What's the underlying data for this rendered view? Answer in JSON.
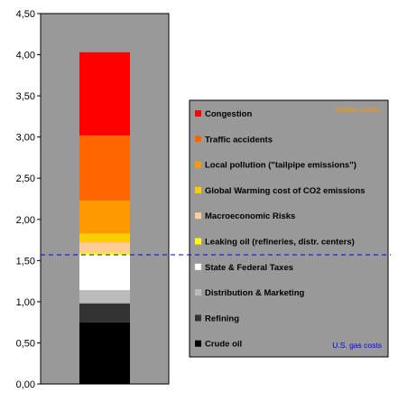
{
  "chart_data": {
    "type": "bar",
    "stacked": true,
    "categories": [
      ""
    ],
    "ylim": [
      0,
      4.5
    ],
    "yticks": [
      "0,00",
      "0,50",
      "1,00",
      "1,50",
      "2,00",
      "2,50",
      "3,00",
      "3,50",
      "4,00",
      "4,50"
    ],
    "plot_background": "#999999",
    "legend_background": "#999999",
    "series": [
      {
        "name": "Crude oil",
        "value": 0.75,
        "color": "#000000"
      },
      {
        "name": "Refining",
        "value": 0.23,
        "color": "#333333"
      },
      {
        "name": "Distribution & Marketing",
        "value": 0.16,
        "color": "#bbbbbb"
      },
      {
        "name": "State & Federal Taxes",
        "value": 0.43,
        "color": "#ffffff"
      },
      {
        "name": "Leaking oil (refineries, distr. centers)",
        "value": 0.03,
        "color": "#ffff00"
      },
      {
        "name": "Macroeconomic Risks",
        "value": 0.12,
        "color": "#ffcc99"
      },
      {
        "name": "Global Warming cost of CO2 emissions",
        "value": 0.11,
        "color": "#ffcc00"
      },
      {
        "name": "Local pollution (\"tailpipe emissions\")",
        "value": 0.4,
        "color": "#ff9900"
      },
      {
        "name": "Traffic accidents",
        "value": 0.79,
        "color": "#ff6600"
      },
      {
        "name": "Congestion",
        "value": 1.01,
        "color": "#ff0000"
      }
    ],
    "reference_line": {
      "value": 1.57,
      "color": "#0000ff",
      "style": "dashed"
    },
    "annotations": {
      "hidden_costs": {
        "text": "hidden costs",
        "color": "#ff9900"
      },
      "us_gas_costs": {
        "text": "U.S. gas costs",
        "color": "#0000ff"
      }
    }
  }
}
